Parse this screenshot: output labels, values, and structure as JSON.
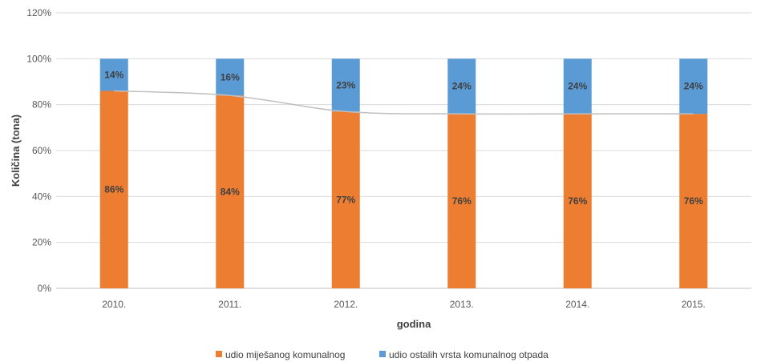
{
  "chart_data": {
    "type": "bar",
    "stacked": true,
    "categories": [
      "2010.",
      "2011.",
      "2012.",
      "2013.",
      "2014.",
      "2015."
    ],
    "series": [
      {
        "name": "udio miješanog komunalnog",
        "values": [
          86,
          84,
          77,
          76,
          76,
          76
        ],
        "labels": [
          "86%",
          "84%",
          "77%",
          "76%",
          "76%",
          "76%"
        ],
        "color": "#ED7D31"
      },
      {
        "name": "udio ostalih vrsta komunalnog otpada",
        "values": [
          14,
          16,
          23,
          24,
          24,
          24
        ],
        "labels": [
          "14%",
          "16%",
          "23%",
          "24%",
          "24%",
          "24%"
        ],
        "color": "#5B9BD5"
      }
    ],
    "trend_line": {
      "values": [
        86,
        84,
        77,
        76,
        76,
        76
      ],
      "color": "#BFBFBF"
    },
    "ylim": [
      0,
      120
    ],
    "yticks": [
      "0%",
      "20%",
      "40%",
      "60%",
      "80%",
      "100%",
      "120%"
    ],
    "ytick_values": [
      0,
      20,
      40,
      60,
      80,
      100,
      120
    ],
    "xlabel": "godina",
    "ylabel": "Količina (tona)",
    "legend_position": "bottom",
    "gridlines": {
      "y": true,
      "color": "#D9D9D9"
    }
  }
}
